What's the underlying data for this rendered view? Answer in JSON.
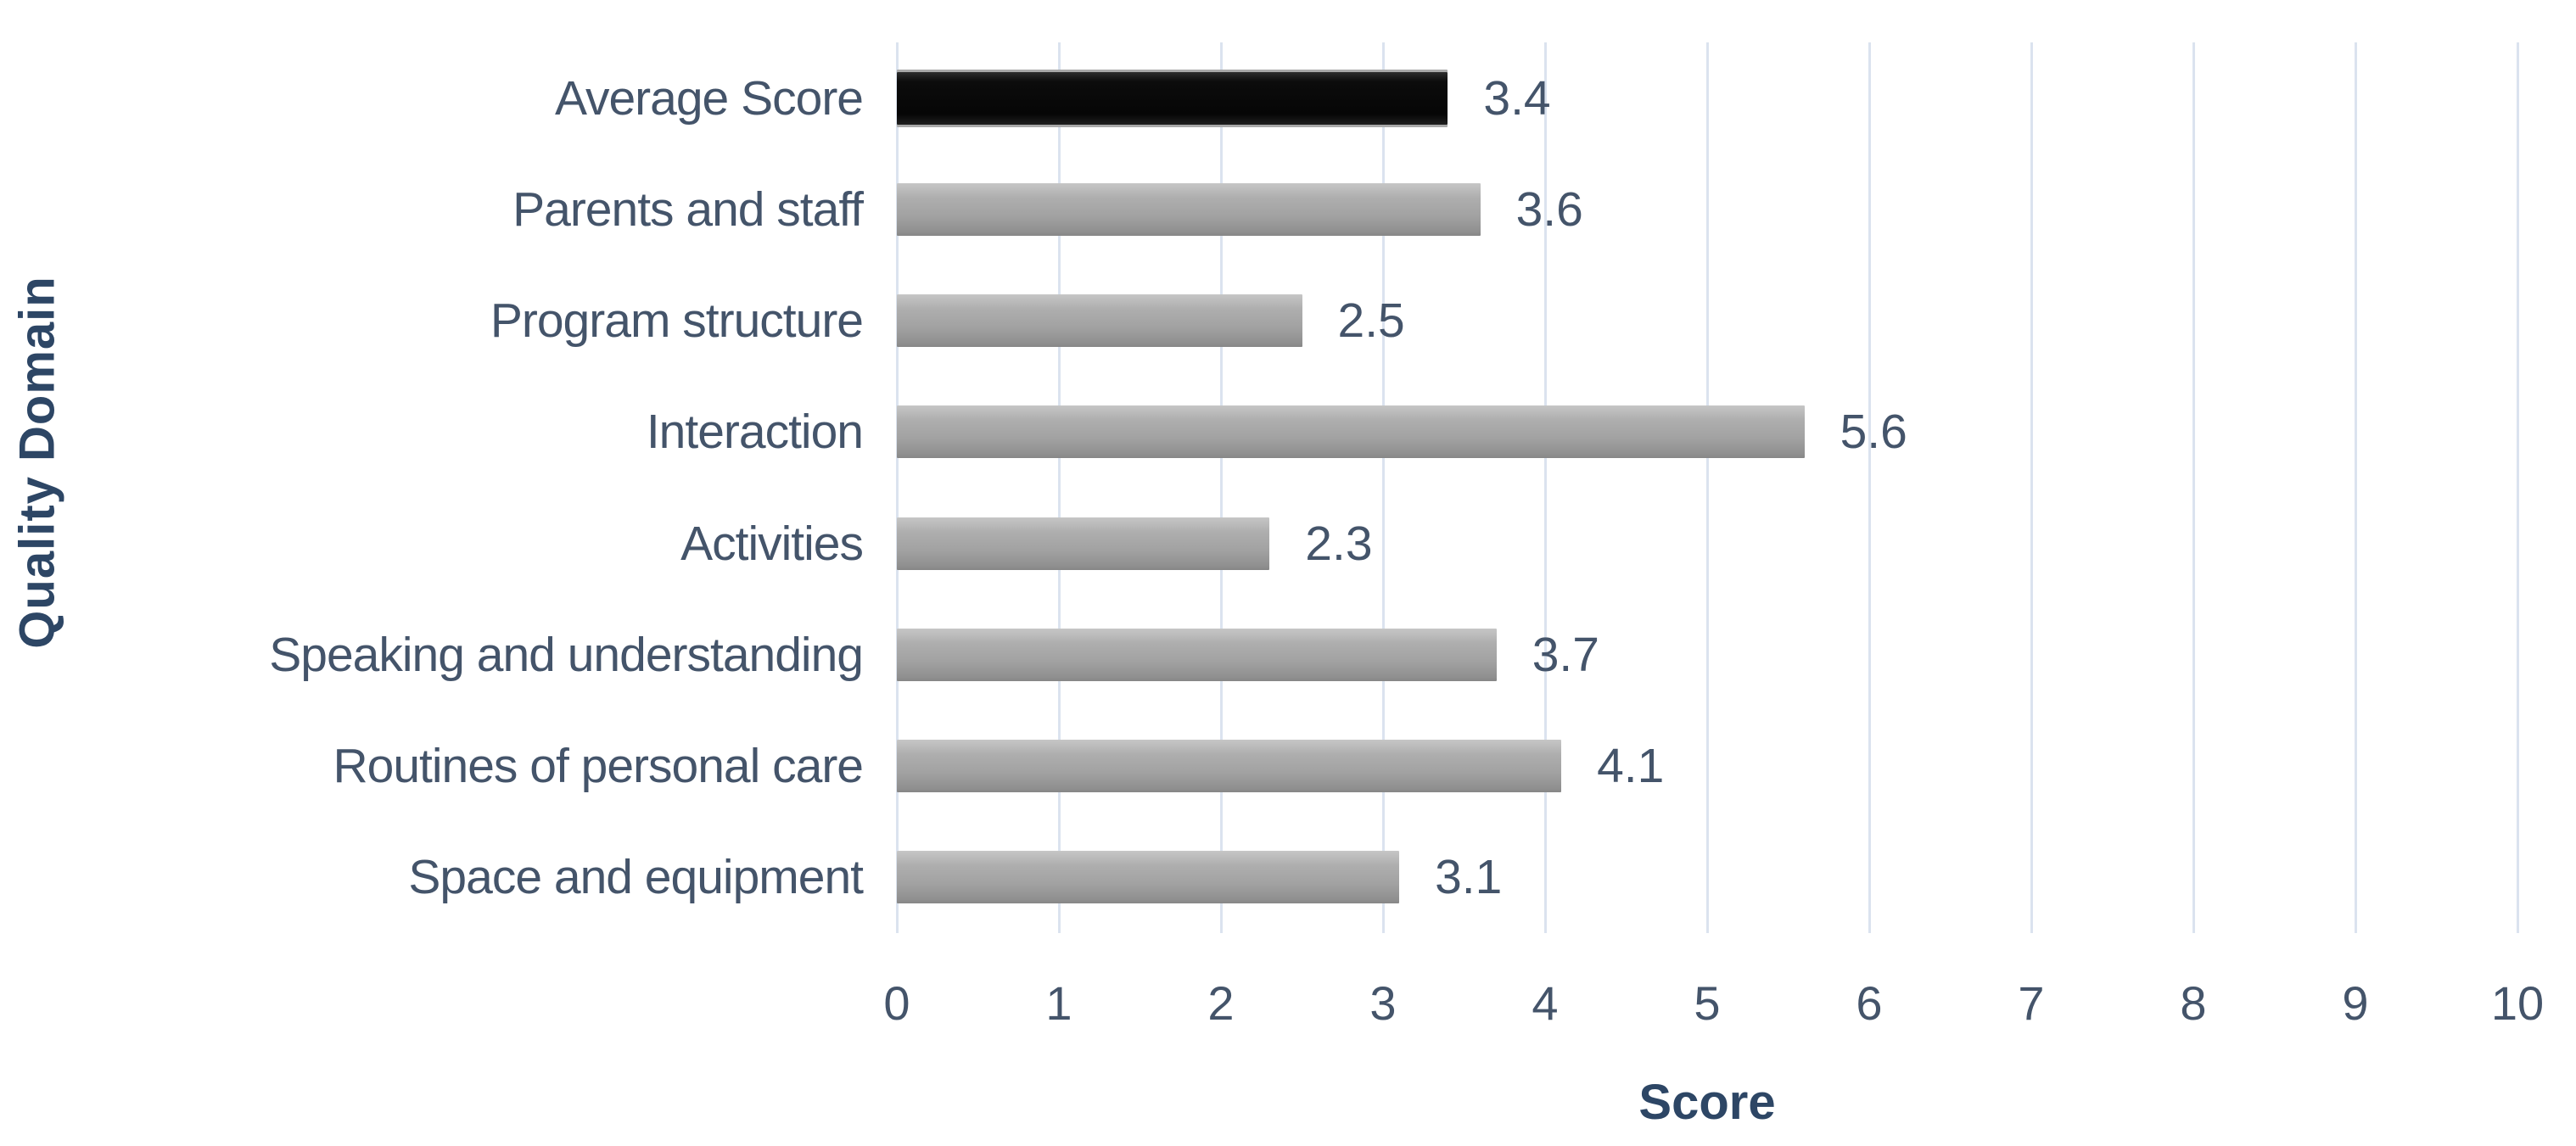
{
  "chart_data": {
    "type": "bar",
    "orientation": "horizontal",
    "title": "",
    "xlabel": "Score",
    "ylabel": "Quality Domain",
    "xlim": [
      0,
      10
    ],
    "x_tick_labels": [
      "0",
      "1",
      "2",
      "3",
      "4",
      "5",
      "6",
      "7",
      "8",
      "9",
      "10"
    ],
    "grid": true,
    "legend": false,
    "categories": [
      "Average Score",
      "Parents and staff",
      "Program structure",
      "Interaction",
      "Activities",
      "Speaking and understanding",
      "Routines of personal care",
      "Space and equipment"
    ],
    "values": [
      3.4,
      3.6,
      2.5,
      5.6,
      2.3,
      3.7,
      4.1,
      3.1
    ],
    "value_labels": [
      "3.4",
      "3.6",
      "2.5",
      "5.6",
      "2.3",
      "3.7",
      "4.1",
      "3.1"
    ],
    "highlighted_category": "Average Score"
  },
  "colors": {
    "bar_default": "#a6a6a6",
    "bar_highlight": "#0d0d0d",
    "gridline": "#dbe3ef",
    "label_text": "#44546a",
    "axis_title_text": "#2d4665",
    "background": "#ffffff"
  }
}
